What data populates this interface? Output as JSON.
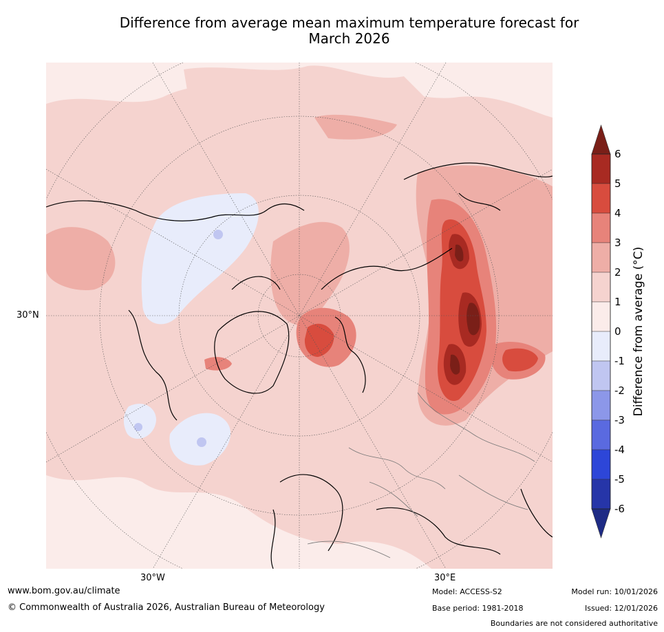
{
  "title_line1": "Difference from average mean maximum temperature forecast for",
  "title_line2": "March 2026",
  "map": {
    "lat_label": "30°N",
    "lon_labels": [
      "30°W",
      "30°E"
    ],
    "regions": [
      {
        "name": "siberia-west-anomaly",
        "level": 5
      },
      {
        "name": "ural-anomaly",
        "level": 5
      },
      {
        "name": "kazakhstan-anomaly",
        "level": 5
      },
      {
        "name": "scandinavia-anomaly",
        "level": 4
      },
      {
        "name": "canada-cool-anomaly",
        "level": -1
      },
      {
        "name": "atlantic-cool-anomaly",
        "level": -1
      }
    ]
  },
  "colorbar": {
    "label": "Difference from average (°C)",
    "ticks": [
      "6",
      "5",
      "4",
      "3",
      "2",
      "1",
      "0",
      "-1",
      "-2",
      "-3",
      "-4",
      "-5",
      "-6"
    ],
    "colors": {
      "above6": "#7a1f18",
      "5to6": "#a82a22",
      "4to5": "#d84c3e",
      "3to4": "#e7837a",
      "2to3": "#eeaea7",
      "1to2": "#f5d3cf",
      "0to1": "#fbecea",
      "m1to0": "#e8ecfb",
      "m2tom1": "#c0c6f1",
      "m3tom2": "#8c97e9",
      "m4tom3": "#5a6ae0",
      "m5tom4": "#2d46d8",
      "m6tom5": "#2635a8",
      "belowm6": "#1e2b85"
    }
  },
  "footer": {
    "url": "www.bom.gov.au/climate",
    "copyright": "© Commonwealth of Australia 2026, Australian Bureau of Meteorology",
    "model": "Model: ACCESS-S2",
    "base_period": "Base period: 1981-2018",
    "model_run": "Model run: 10/01/2026",
    "issued": "Issued: 12/01/2026",
    "disclaimer": "Boundaries are not considered authoritative"
  }
}
